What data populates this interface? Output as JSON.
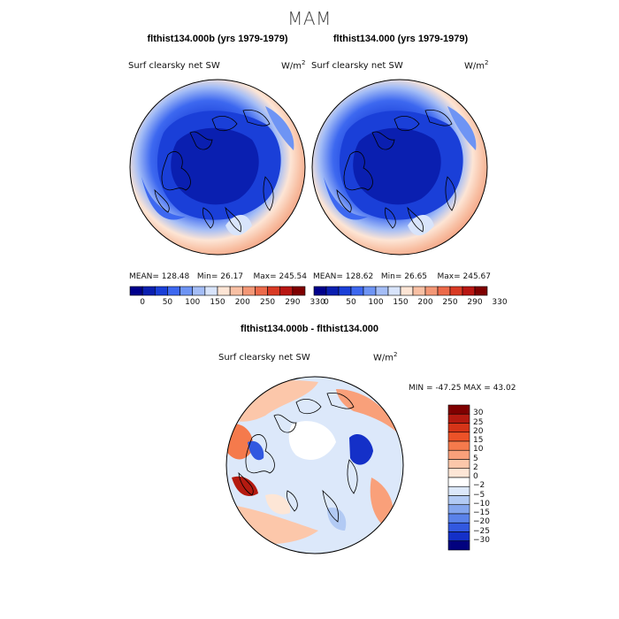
{
  "page": {
    "season_title": "MAM"
  },
  "chart_data": [
    {
      "type": "heatmap",
      "projection": "polar stereographic (north pole)",
      "title": "flthist134.000b (yrs 1979-1979)",
      "variable_label": "Surf clearsky net SW",
      "units_base": "W/m",
      "units_exp": "2",
      "stats": {
        "mean_label": "MEAN=",
        "mean": "128.48",
        "min_label": "Min=",
        "min": "26.17",
        "max_label": "Max=",
        "max": "245.54"
      },
      "colorbar": {
        "orientation": "horizontal",
        "tick_labels": [
          "0",
          "50",
          "100",
          "150",
          "200",
          "250",
          "290",
          "330"
        ],
        "colors": [
          "#00008b",
          "#0a1fb0",
          "#1a3fd8",
          "#3d68f0",
          "#6e94f4",
          "#a4bdf6",
          "#d8e4fb",
          "#fde5d5",
          "#f8c0a4",
          "#f39776",
          "#ec6a4a",
          "#d93a24",
          "#b81612",
          "#7f0000"
        ]
      }
    },
    {
      "type": "heatmap",
      "projection": "polar stereographic (north pole)",
      "title": "flthist134.000 (yrs 1979-1979)",
      "variable_label": "Surf clearsky net SW",
      "units_base": "W/m",
      "units_exp": "2",
      "stats": {
        "mean_label": "MEAN=",
        "mean": "128.62",
        "min_label": "Min=",
        "min": "26.65",
        "max_label": "Max=",
        "max": "245.67"
      },
      "colorbar": {
        "orientation": "horizontal",
        "tick_labels": [
          "0",
          "50",
          "100",
          "150",
          "200",
          "250",
          "290",
          "330"
        ],
        "colors": [
          "#00008b",
          "#0a1fb0",
          "#1a3fd8",
          "#3d68f0",
          "#6e94f4",
          "#a4bdf6",
          "#d8e4fb",
          "#fde5d5",
          "#f8c0a4",
          "#f39776",
          "#ec6a4a",
          "#d93a24",
          "#b81612",
          "#7f0000"
        ]
      }
    },
    {
      "type": "heatmap",
      "projection": "polar stereographic (north pole)",
      "title": "flthist134.000b - flthist134.000",
      "variable_label": "Surf clearsky net SW",
      "units_base": "W/m",
      "units_exp": "2",
      "stats": {
        "min_label": "MIN =",
        "min": "-47.25",
        "max_label": "MAX =",
        "max": "43.02"
      },
      "colorbar": {
        "orientation": "vertical",
        "tick_labels": [
          "30",
          "25",
          "20",
          "15",
          "10",
          "5",
          "2",
          "0",
          "−2",
          "−5",
          "−10",
          "−15",
          "−20",
          "−25",
          "−30"
        ],
        "colors": [
          "#7f0000",
          "#b41a10",
          "#d53418",
          "#ec5228",
          "#f57a4c",
          "#f9a07a",
          "#fcc7aa",
          "#fde6d6",
          "#ffffff",
          "#dce8fa",
          "#b2caf4",
          "#84a6ee",
          "#5a82ea",
          "#3258e0",
          "#1430c8",
          "#02027f"
        ]
      }
    }
  ]
}
